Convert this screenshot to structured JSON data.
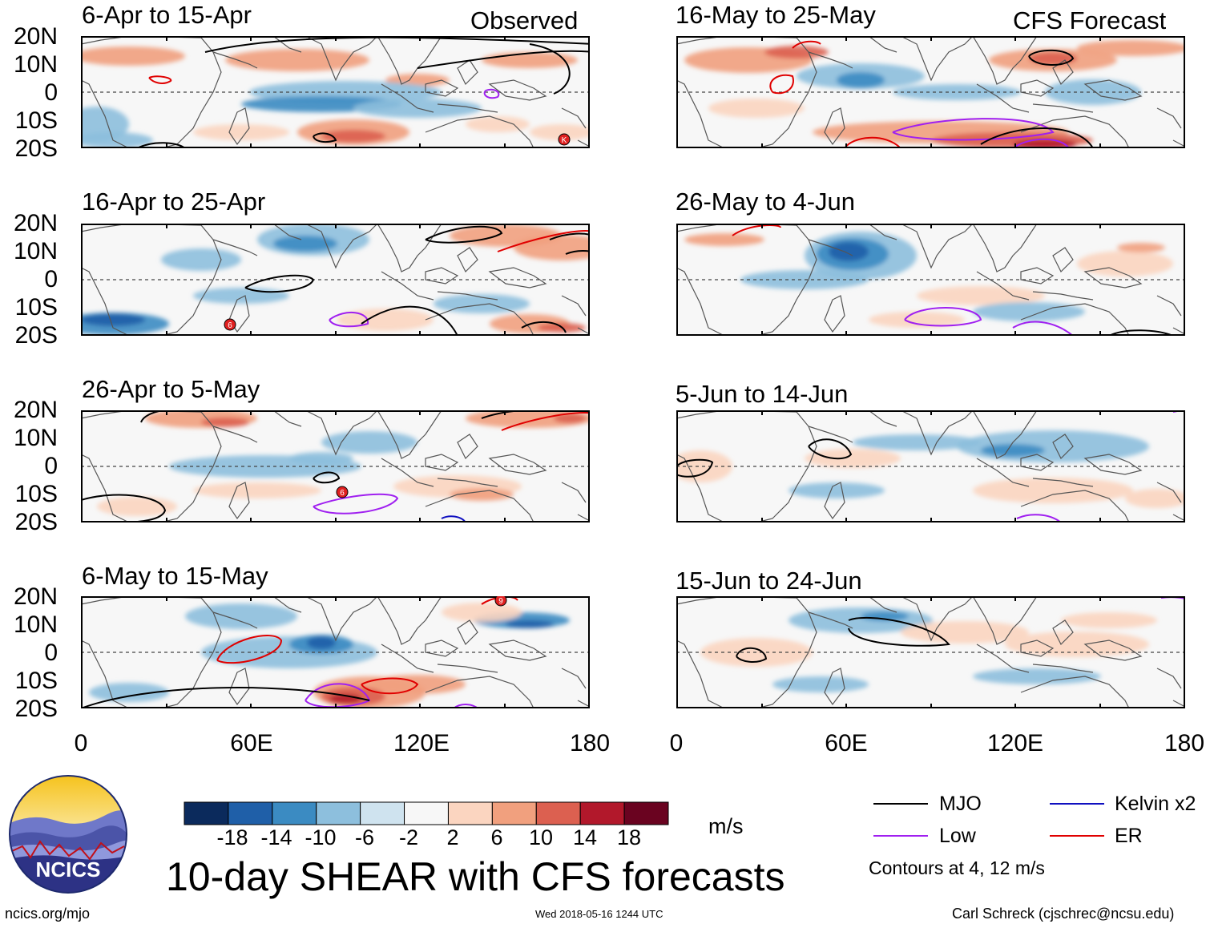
{
  "header": {
    "observed_label": "Observed",
    "forecast_label": "CFS Forecast"
  },
  "axis": {
    "lat_labels": [
      "20N",
      "10N",
      "0",
      "10S",
      "20S"
    ],
    "lon_labels": [
      "0",
      "60E",
      "120E",
      "180"
    ]
  },
  "panels": [
    {
      "title": "6-Apr to 15-Apr",
      "column": "observed"
    },
    {
      "title": "16-Apr to 25-Apr",
      "column": "observed"
    },
    {
      "title": "26-Apr to 5-May",
      "column": "observed"
    },
    {
      "title": "6-May to 15-May",
      "column": "observed"
    },
    {
      "title": "16-May to 25-May",
      "column": "forecast"
    },
    {
      "title": "26-May to 4-Jun",
      "column": "forecast"
    },
    {
      "title": "5-Jun to 14-Jun",
      "column": "forecast"
    },
    {
      "title": "15-Jun to 24-Jun",
      "column": "forecast"
    }
  ],
  "colorbar": {
    "colors": [
      "#0b2a5c",
      "#1f5fa8",
      "#3b8bc2",
      "#8dbfdd",
      "#cfe3ef",
      "#f7f7f7",
      "#fbd5c0",
      "#f1a07e",
      "#dc6050",
      "#b2182b",
      "#6a0320"
    ],
    "labels": [
      "-18",
      "-14",
      "-10",
      "-6",
      "-2",
      "2",
      "6",
      "10",
      "14",
      "18"
    ],
    "units": "m/s"
  },
  "legend": {
    "items": [
      {
        "label": "MJO",
        "color": "#000000"
      },
      {
        "label": "Kelvin x2",
        "color": "#1010c0"
      },
      {
        "label": "Low",
        "color": "#a020f0"
      },
      {
        "label": "ER",
        "color": "#e00000"
      }
    ],
    "contours_note": "Contours at 4, 12 m/s"
  },
  "logo_text": "NCICS",
  "main_title": "10-day SHEAR with CFS forecasts",
  "footer": {
    "left": "ncics.org/mjo",
    "center": "Wed 2018-05-16 1244 UTC",
    "right": "Carl Schreck (cjschrec@ncsu.edu)"
  },
  "chart_data": {
    "type": "heatmap",
    "variable": "10-day SHEAR anomaly",
    "units": "m/s",
    "lon_range": [
      0,
      180
    ],
    "lat_range": [
      -20,
      20
    ],
    "color_levels": [
      -18,
      -14,
      -10,
      -6,
      -2,
      2,
      6,
      10,
      14,
      18
    ],
    "contour_levels": [
      4,
      12
    ],
    "contour_types": [
      "MJO",
      "Kelvin x2",
      "Low",
      "ER"
    ]
  }
}
